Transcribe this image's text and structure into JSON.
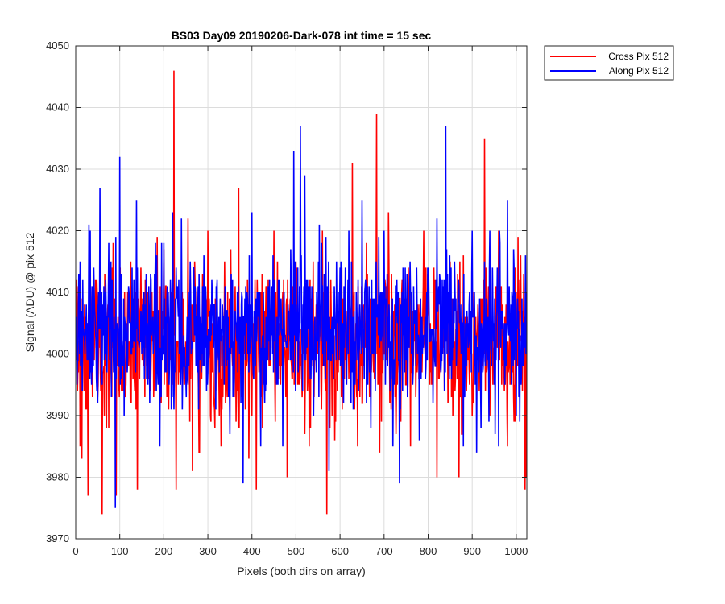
{
  "chart_data": {
    "type": "line",
    "title": "BS03 Day09 20190206-Dark-078 int time = 15 sec",
    "xlabel": "Pixels (both dirs on array)",
    "ylabel": "Signal (ADU) @ pix 512",
    "xlim": [
      0,
      1024
    ],
    "ylim": [
      3970,
      4050
    ],
    "xticks": [
      0,
      100,
      200,
      300,
      400,
      500,
      600,
      700,
      800,
      900,
      1000
    ],
    "yticks": [
      3970,
      3980,
      3990,
      4000,
      4010,
      4020,
      4030,
      4040,
      4050
    ],
    "grid": true,
    "legend_position": "outside-top-right",
    "series": [
      {
        "name": "Cross Pix 512",
        "color": "#ff0000",
        "mean": 4002,
        "x": [
          0,
          5,
          10,
          14,
          20,
          28,
          45,
          60,
          85,
          92,
          135,
          140,
          185,
          200,
          223,
          228,
          240,
          255,
          265,
          290,
          300,
          330,
          370,
          400,
          410,
          420,
          450,
          480,
          500,
          530,
          560,
          570,
          600,
          628,
          640,
          660,
          683,
          690,
          710,
          730,
          740,
          760,
          790,
          800,
          820,
          850,
          870,
          880,
          900,
          920,
          928,
          940,
          960,
          980,
          1000,
          1010,
          1020,
          1023
        ],
        "values": [
          4000,
          3998,
          3985,
          3983,
          4008,
          3977,
          4012,
          3974,
          4018,
          3977,
          4010,
          3978,
          4019,
          4017,
          4046,
          3978,
          4010,
          4022,
          3981,
          4012,
          4020,
          3985,
          4027,
          3990,
          3978,
          4010,
          4020,
          3980,
          4015,
          3985,
          4020,
          3974,
          4010,
          4031,
          3985,
          4018,
          4039,
          3984,
          4023,
          3995,
          4010,
          3985,
          4020,
          4010,
          3980,
          4015,
          3980,
          4016,
          3990,
          4005,
          4035,
          3990,
          4020,
          3985,
          4010,
          4016,
          3978,
          3980
        ]
      },
      {
        "name": "Along Pix 512",
        "color": "#0000ff",
        "mean": 4004,
        "x": [
          0,
          10,
          30,
          50,
          55,
          60,
          80,
          90,
          100,
          110,
          138,
          150,
          180,
          200,
          220,
          240,
          260,
          280,
          300,
          320,
          350,
          370,
          380,
          400,
          420,
          450,
          470,
          495,
          510,
          520,
          540,
          560,
          575,
          600,
          620,
          650,
          670,
          700,
          720,
          735,
          760,
          780,
          800,
          820,
          840,
          860,
          880,
          900,
          920,
          940,
          960,
          980,
          1000,
          1020
        ],
        "values": [
          4005,
          4015,
          4021,
          3992,
          4027,
          3995,
          4015,
          3975,
          4032,
          3990,
          4025,
          4000,
          4010,
          4018,
          4023,
          4022,
          4015,
          4013,
          3997,
          4010,
          3987,
          4006,
          3979,
          4023,
          3985,
          4012,
          3985,
          4033,
          4037,
          4029,
          3990,
          4011,
          3981,
          4014,
          4020,
          4025,
          3988,
          4020,
          3985,
          3979,
          4010,
          3986,
          4010,
          4022,
          4037,
          4015,
          3985,
          4020,
          3988,
          4020,
          3985,
          4025,
          3990,
          4003
        ]
      }
    ]
  }
}
